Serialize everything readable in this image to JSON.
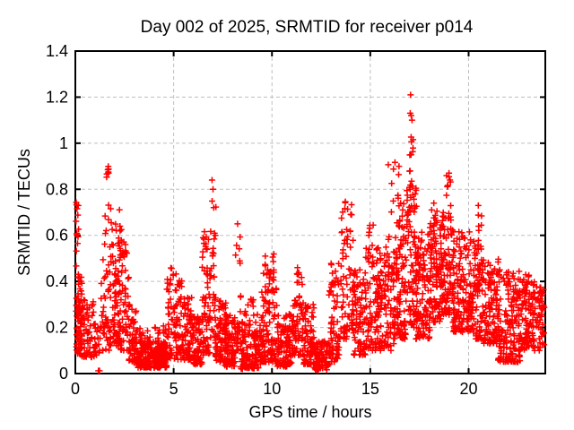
{
  "chart_data": {
    "type": "scatter",
    "title": "Day 002 of 2025, SRMTID for receiver p014",
    "xlabel": "GPS time / hours",
    "ylabel": "SRMTID / TECUs",
    "xlim": [
      0,
      23.9
    ],
    "ylim": [
      0,
      1.4
    ],
    "xticks": {
      "values": [
        0,
        5,
        10,
        15,
        20
      ],
      "labels": [
        "0",
        "5",
        "10",
        "15",
        "20"
      ]
    },
    "yticks": {
      "values": [
        0,
        0.2,
        0.4,
        0.6,
        0.8,
        1.0,
        1.2,
        1.4
      ],
      "labels": [
        "0",
        "0.2",
        "0.4",
        "0.6",
        "0.8",
        "1",
        "1.2",
        "1.4"
      ]
    },
    "grid": true,
    "legend": "none",
    "series_name": "SRMTID",
    "marker": {
      "symbol": "plus",
      "color": "#ff0000",
      "size": 7
    },
    "colors": {
      "background": "#ffffff",
      "axis": "#000000",
      "grid": "#bfbfbf",
      "text": "#000000",
      "series": "#ff0000"
    },
    "points": [
      [
        1.17,
        0.012
      ],
      [
        1.23,
        0.012
      ],
      [
        1.65,
        0.885
      ],
      [
        1.68,
        0.875
      ],
      [
        6.95,
        0.84
      ],
      [
        7.0,
        0.8
      ],
      [
        8.25,
        0.65
      ],
      [
        11.3,
        0.46
      ],
      [
        17.05,
        1.21
      ],
      [
        17.03,
        1.13
      ],
      [
        17.08,
        1.12
      ],
      [
        17.12,
        1.1
      ],
      [
        19.0,
        0.87
      ],
      [
        19.05,
        0.84
      ]
    ],
    "clusters_format": "[hour_start, hour_end, value_min, value_max, count, bottom_bias]",
    "clusters": [
      [
        0.02,
        0.35,
        0.08,
        0.42,
        70,
        1.6
      ],
      [
        0.03,
        0.22,
        0.42,
        0.75,
        14,
        1.0
      ],
      [
        0.3,
        0.95,
        0.07,
        0.33,
        60,
        1.6
      ],
      [
        0.95,
        1.3,
        0.08,
        0.24,
        20,
        1.3
      ],
      [
        1.3,
        1.75,
        0.1,
        0.78,
        45,
        1.8
      ],
      [
        1.58,
        1.72,
        0.84,
        0.9,
        5,
        1.0
      ],
      [
        1.75,
        2.25,
        0.12,
        0.72,
        75,
        1.7
      ],
      [
        2.2,
        2.75,
        0.1,
        0.58,
        65,
        1.7
      ],
      [
        2.25,
        2.6,
        0.5,
        0.66,
        8,
        1.0
      ],
      [
        2.7,
        3.15,
        0.05,
        0.3,
        50,
        1.5
      ],
      [
        3.1,
        4.65,
        0.025,
        0.14,
        240,
        1.3
      ],
      [
        3.2,
        4.6,
        0.13,
        0.21,
        25,
        1.2
      ],
      [
        4.65,
        5.45,
        0.06,
        0.47,
        95,
        1.7
      ],
      [
        5.45,
        6.0,
        0.06,
        0.33,
        75,
        1.5
      ],
      [
        6.0,
        6.45,
        0.04,
        0.25,
        65,
        1.4
      ],
      [
        6.45,
        6.85,
        0.08,
        0.62,
        60,
        1.7
      ],
      [
        6.85,
        7.15,
        0.15,
        0.78,
        32,
        1.5
      ],
      [
        7.1,
        7.65,
        0.05,
        0.35,
        75,
        1.6
      ],
      [
        7.6,
        8.15,
        0.03,
        0.26,
        85,
        1.5
      ],
      [
        8.15,
        8.42,
        0.1,
        0.6,
        26,
        1.6
      ],
      [
        8.4,
        9.45,
        0.02,
        0.25,
        130,
        1.5
      ],
      [
        8.6,
        9.35,
        0.25,
        0.33,
        12,
        1.0
      ],
      [
        9.45,
        10.25,
        0.05,
        0.45,
        115,
        1.6
      ],
      [
        9.6,
        10.1,
        0.42,
        0.52,
        8,
        1.0
      ],
      [
        10.25,
        11.0,
        0.03,
        0.26,
        95,
        1.5
      ],
      [
        11.0,
        11.6,
        0.08,
        0.44,
        75,
        1.6
      ],
      [
        11.6,
        12.15,
        0.04,
        0.3,
        75,
        1.5
      ],
      [
        12.15,
        12.95,
        0.015,
        0.14,
        85,
        1.3
      ],
      [
        12.9,
        13.45,
        0.05,
        0.4,
        65,
        1.5
      ],
      [
        13.0,
        13.4,
        0.38,
        0.55,
        8,
        1.0
      ],
      [
        13.45,
        14.15,
        0.15,
        0.62,
        65,
        1.4
      ],
      [
        13.5,
        14.05,
        0.6,
        0.75,
        11,
        1.0
      ],
      [
        14.1,
        14.75,
        0.08,
        0.46,
        75,
        1.5
      ],
      [
        14.75,
        15.35,
        0.1,
        0.55,
        65,
        1.5
      ],
      [
        14.9,
        15.2,
        0.55,
        0.66,
        6,
        1.0
      ],
      [
        15.3,
        16.2,
        0.1,
        0.55,
        115,
        1.5
      ],
      [
        15.9,
        16.5,
        0.58,
        0.92,
        13,
        1.1
      ],
      [
        16.2,
        16.85,
        0.15,
        0.66,
        105,
        1.4
      ],
      [
        16.3,
        16.75,
        0.66,
        0.78,
        8,
        1.0
      ],
      [
        16.85,
        17.35,
        0.2,
        0.84,
        85,
        1.3
      ],
      [
        16.98,
        17.18,
        0.85,
        1.05,
        9,
        1.0
      ],
      [
        17.3,
        18.05,
        0.15,
        0.62,
        115,
        1.4
      ],
      [
        18.0,
        18.65,
        0.22,
        0.66,
        115,
        1.3
      ],
      [
        18.1,
        18.55,
        0.66,
        0.74,
        7,
        1.0
      ],
      [
        18.65,
        19.25,
        0.25,
        0.7,
        95,
        1.3
      ],
      [
        18.85,
        19.15,
        0.72,
        0.87,
        8,
        1.0
      ],
      [
        19.2,
        20.25,
        0.18,
        0.62,
        155,
        1.4
      ],
      [
        20.25,
        20.75,
        0.15,
        0.6,
        75,
        1.4
      ],
      [
        20.45,
        20.68,
        0.62,
        0.74,
        6,
        1.0
      ],
      [
        20.7,
        21.55,
        0.13,
        0.5,
        115,
        1.4
      ],
      [
        21.5,
        22.65,
        0.05,
        0.45,
        160,
        1.5
      ],
      [
        22.6,
        23.35,
        0.1,
        0.43,
        95,
        1.4
      ],
      [
        23.3,
        23.85,
        0.1,
        0.38,
        60,
        1.4
      ]
    ]
  }
}
